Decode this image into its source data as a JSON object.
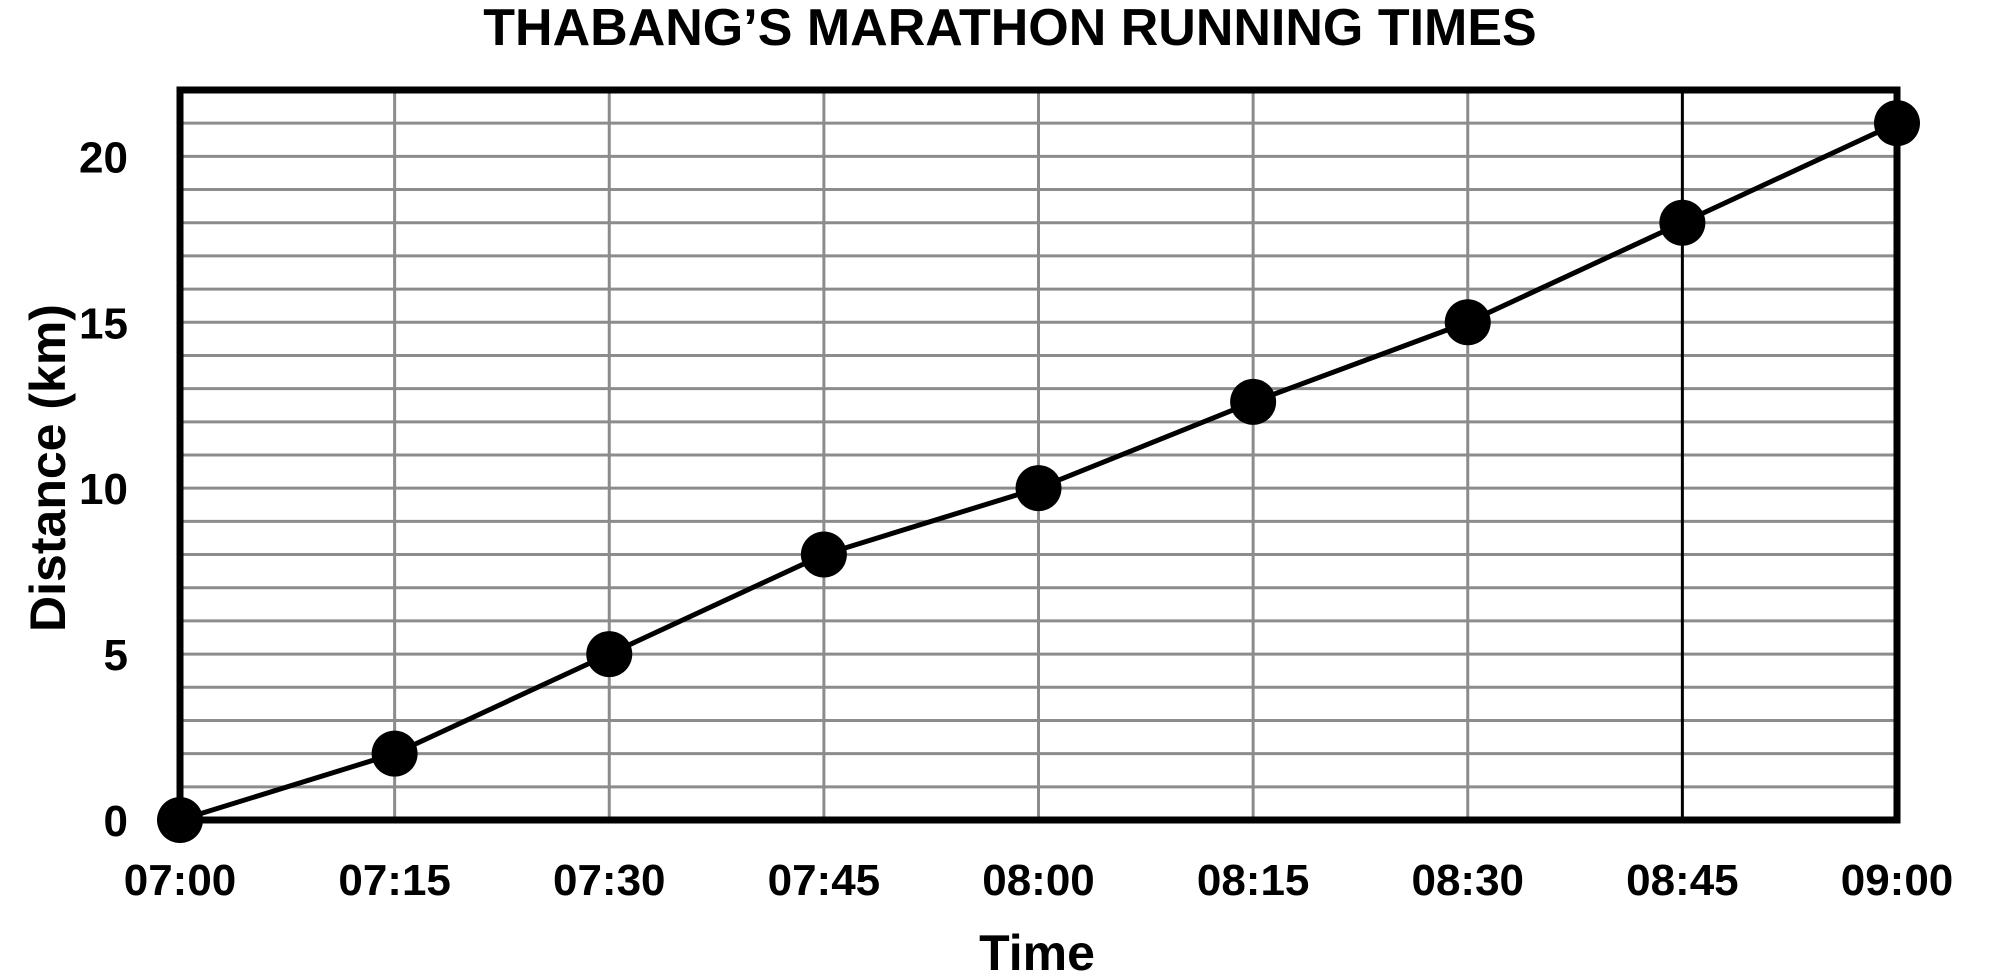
{
  "chart_data": {
    "type": "line",
    "title": "THABANG’S MARATHON RUNNING TIMES",
    "xlabel": "Time",
    "ylabel": "Distance (km)",
    "x_categories": [
      "07:00",
      "07:15",
      "07:30",
      "07:45",
      "08:00",
      "08:15",
      "08:30",
      "08:45",
      "09:00"
    ],
    "y_ticks": [
      0,
      5,
      10,
      15,
      20
    ],
    "ylim": [
      0,
      22
    ],
    "y_minor_step": 1,
    "grid": true,
    "series": [
      {
        "values": [
          0,
          2,
          5,
          8,
          10,
          12.6,
          15,
          18,
          21
        ]
      }
    ],
    "colors": {
      "line": "#000000",
      "grid": "#8c8c8c",
      "frame": "#000000"
    }
  }
}
